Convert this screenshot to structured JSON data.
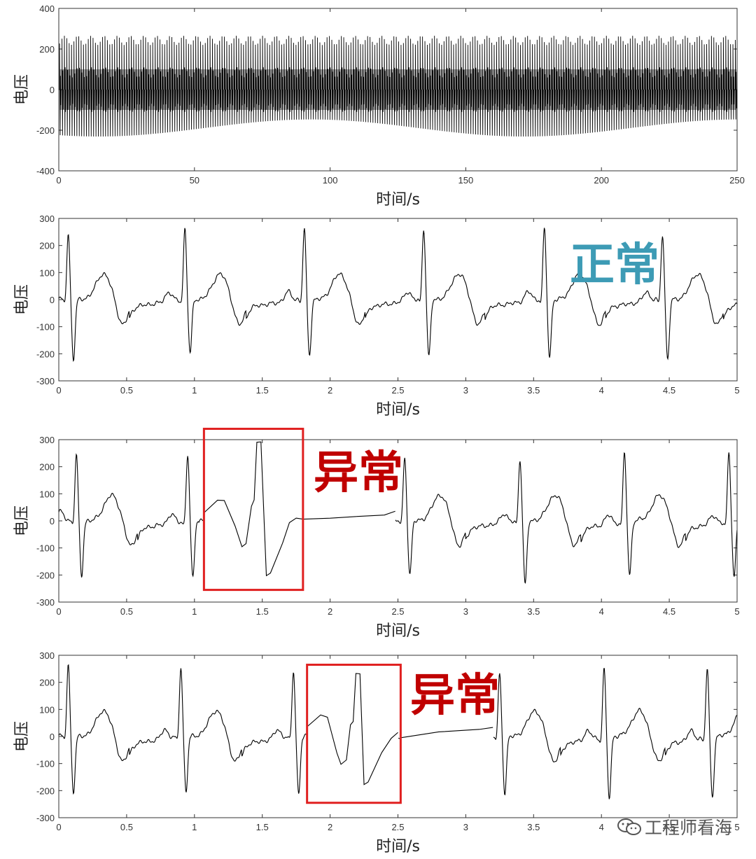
{
  "chart_data": [
    {
      "type": "line",
      "title": "",
      "xlabel": "时间/s",
      "ylabel": "电压",
      "xlim": [
        0,
        250
      ],
      "ylim": [
        -400,
        400
      ],
      "xticks": [
        0,
        50,
        100,
        150,
        200,
        250
      ],
      "yticks": [
        -400,
        -200,
        0,
        200,
        400
      ],
      "grid": false,
      "series": [
        {
          "description_kind": "dense ECG trace",
          "beat_period_s": 0.88,
          "r_peak": 250,
          "s_trough": -210,
          "wave_range": [
            -100,
            100
          ]
        }
      ]
    },
    {
      "type": "line",
      "title": "",
      "xlabel": "时间/s",
      "ylabel": "电压",
      "xlim": [
        0,
        5
      ],
      "ylim": [
        -300,
        300
      ],
      "xticks": [
        0,
        0.5,
        1,
        1.5,
        2,
        2.5,
        3,
        3.5,
        4,
        4.5,
        5
      ],
      "yticks": [
        -300,
        -200,
        -100,
        0,
        100,
        200,
        300
      ],
      "grid": false,
      "annotation": {
        "text": "正常",
        "color": "#3d9bb5"
      },
      "series": [
        {
          "r_peaks": [
            {
              "t": 0.07,
              "r": 240,
              "s": -220
            },
            {
              "t": 0.93,
              "r": 262,
              "s": -200
            },
            {
              "t": 1.81,
              "r": 260,
              "s": -205
            },
            {
              "t": 2.69,
              "r": 262,
              "s": -210
            },
            {
              "t": 3.58,
              "r": 262,
              "s": -213
            },
            {
              "t": 4.45,
              "r": 238,
              "s": -222
            }
          ],
          "pre_segment": [
            [
              0,
              -15
            ],
            [
              0.03,
              -20
            ]
          ],
          "post_segment": [
            [
              4.85,
              -50
            ],
            [
              5,
              -15
            ]
          ]
        }
      ]
    },
    {
      "type": "line",
      "title": "",
      "xlabel": "时间/s",
      "ylabel": "电压",
      "xlim": [
        0,
        5
      ],
      "ylim": [
        -300,
        300
      ],
      "xticks": [
        0,
        0.5,
        1,
        1.5,
        2,
        2.5,
        3,
        3.5,
        4,
        4.5,
        5
      ],
      "yticks": [
        -300,
        -200,
        -100,
        0,
        100,
        200,
        300
      ],
      "grid": false,
      "annotation": {
        "text": "异常",
        "color": "#c00000"
      },
      "highlight": {
        "x": [
          1.07,
          1.8
        ],
        "y": [
          -255,
          340
        ],
        "color": "#e02020"
      },
      "series": [
        {
          "r_peaks": [
            {
              "t": 0.13,
              "r": 245,
              "s": -205
            },
            {
              "t": 0.95,
              "r": 247,
              "s": -215
            },
            {
              "t": 2.55,
              "r": 236,
              "s": -200
            },
            {
              "t": 3.4,
              "r": 228,
              "s": -238
            },
            {
              "t": 4.17,
              "r": 260,
              "s": -198
            },
            {
              "t": 4.94,
              "r": 260,
              "s": -205
            }
          ],
          "abnormal_beat": [
            [
              1.07,
              30
            ],
            [
              1.17,
              75
            ],
            [
              1.22,
              75
            ],
            [
              1.3,
              -20
            ],
            [
              1.35,
              -95
            ],
            [
              1.38,
              -85
            ],
            [
              1.42,
              55
            ],
            [
              1.44,
              75
            ],
            [
              1.46,
              290
            ],
            [
              1.49,
              290
            ],
            [
              1.53,
              -200
            ],
            [
              1.56,
              -195
            ],
            [
              1.65,
              -80
            ],
            [
              1.7,
              -10
            ],
            [
              1.75,
              10
            ],
            [
              1.8,
              8
            ]
          ],
          "flat_segment": [
            [
              1.8,
              8
            ],
            [
              2.0,
              10
            ],
            [
              2.2,
              15
            ],
            [
              2.4,
              20
            ],
            [
              2.48,
              35
            ]
          ],
          "pre_segment": [
            [
              0,
              50
            ],
            [
              0.08,
              -5
            ]
          ]
        }
      ]
    },
    {
      "type": "line",
      "title": "",
      "xlabel": "时间/s",
      "ylabel": "电压",
      "xlim": [
        0,
        5
      ],
      "ylim": [
        -300,
        300
      ],
      "xticks": [
        0,
        0.5,
        1,
        1.5,
        2,
        2.5,
        3,
        3.5,
        4,
        4.5,
        5
      ],
      "yticks": [
        -300,
        -200,
        -100,
        0,
        100,
        200,
        300
      ],
      "grid": false,
      "annotation": {
        "text": "异常",
        "color": "#c00000"
      },
      "highlight": {
        "x": [
          1.83,
          2.52
        ],
        "y": [
          -245,
          265
        ],
        "color": "#e02020"
      },
      "series": [
        {
          "r_peaks": [
            {
              "t": 0.07,
              "r": 265,
              "s": -205
            },
            {
              "t": 0.9,
              "r": 255,
              "s": -205
            },
            {
              "t": 1.73,
              "r": 243,
              "s": -215
            },
            {
              "t": 3.25,
              "r": 230,
              "s": -210
            },
            {
              "t": 4.02,
              "r": 256,
              "s": -225
            },
            {
              "t": 4.78,
              "r": 255,
              "s": -220
            }
          ],
          "abnormal_beat": [
            [
              1.83,
              35
            ],
            [
              1.93,
              80
            ],
            [
              1.98,
              75
            ],
            [
              2.05,
              -60
            ],
            [
              2.08,
              -105
            ],
            [
              2.12,
              -85
            ],
            [
              2.15,
              40
            ],
            [
              2.17,
              55
            ],
            [
              2.19,
              235
            ],
            [
              2.22,
              232
            ],
            [
              2.25,
              -175
            ],
            [
              2.28,
              -170
            ],
            [
              2.38,
              -60
            ],
            [
              2.45,
              -5
            ],
            [
              2.5,
              15
            ]
          ],
          "flat_segment": [
            [
              2.52,
              -5
            ],
            [
              2.8,
              15
            ],
            [
              3.1,
              25
            ],
            [
              3.2,
              35
            ]
          ],
          "pre_segment": [
            [
              0,
              -5
            ],
            [
              0.03,
              -20
            ]
          ]
        }
      ]
    }
  ],
  "watermark": {
    "text": "工程师看海",
    "icon": "wechat-icon"
  }
}
